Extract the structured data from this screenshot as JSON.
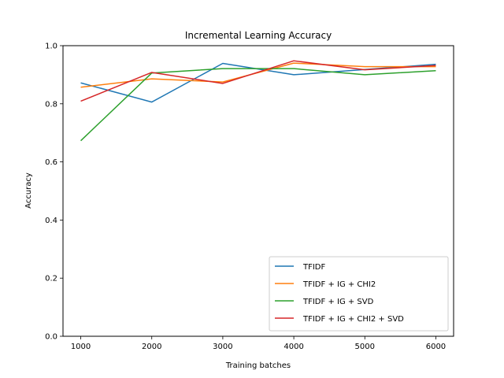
{
  "chart_data": {
    "type": "line",
    "title": "Incremental Learning Accuracy",
    "xlabel": "Training batches",
    "ylabel": "Accuracy",
    "x": [
      1000,
      2000,
      3000,
      4000,
      5000,
      6000
    ],
    "xlim": [
      750,
      6250
    ],
    "ylim": [
      0.0,
      1.0
    ],
    "xticks": [
      1000,
      2000,
      3000,
      4000,
      5000,
      6000
    ],
    "yticks": [
      0.0,
      0.2,
      0.4,
      0.6,
      0.8,
      1.0
    ],
    "xtick_labels": [
      "1000",
      "2000",
      "3000",
      "4000",
      "5000",
      "6000"
    ],
    "ytick_labels": [
      "0.0",
      "0.2",
      "0.4",
      "0.6",
      "0.8",
      "1.0"
    ],
    "grid": false,
    "legend_position": "lower-right",
    "series": [
      {
        "name": "TFIDF",
        "color": "#1f77b4",
        "values": [
          0.872,
          0.806,
          0.939,
          0.9,
          0.918,
          0.936
        ]
      },
      {
        "name": "TFIDF + IG + CHI2",
        "color": "#ff7f0e",
        "values": [
          0.857,
          0.886,
          0.875,
          0.94,
          0.928,
          0.928
        ]
      },
      {
        "name": "TFIDF + IG + SVD",
        "color": "#2ca02c",
        "values": [
          0.673,
          0.906,
          0.921,
          0.921,
          0.9,
          0.914
        ]
      },
      {
        "name": "TFIDF + IG + CHI2 + SVD",
        "color": "#d62728",
        "values": [
          0.809,
          0.908,
          0.87,
          0.948,
          0.917,
          0.932
        ]
      }
    ]
  }
}
